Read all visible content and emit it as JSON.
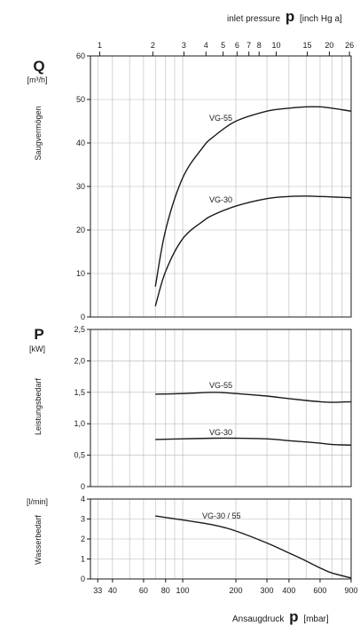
{
  "chart_data": {
    "type": "line",
    "top_axis": {
      "label_prefix": "inlet pressure",
      "symbol": "p",
      "unit": "[inch Hg a]",
      "ticks": [
        "1",
        "2",
        "3",
        "4",
        "5",
        "6",
        "7",
        "8",
        "10",
        "15",
        "20",
        "26"
      ]
    },
    "bottom_axis": {
      "label_prefix": "Ansaugdruck",
      "symbol": "p",
      "unit": "[mbar]",
      "scale": "log",
      "range": [
        30,
        900
      ],
      "ticks": [
        "33",
        "40",
        "60",
        "80",
        "100",
        "200",
        "300",
        "400",
        "600",
        "900"
      ]
    },
    "panels": [
      {
        "id": "Q",
        "symbol": "Q",
        "unit": "[m³/h]",
        "ylabel": "Saugvermögen",
        "ylim": [
          0,
          60
        ],
        "yticks": [
          "0",
          "10",
          "20",
          "30",
          "40",
          "50",
          "60"
        ],
        "series": [
          {
            "name": "VG-55",
            "x": [
              70,
              80,
              100,
              130,
              150,
              200,
              300,
              400,
              500,
              600,
              700,
              900
            ],
            "y": [
              7,
              20,
              32,
              39,
              41.5,
              45,
              47.3,
              48,
              48.3,
              48.3,
              48,
              47.3
            ]
          },
          {
            "name": "VG-30",
            "x": [
              70,
              80,
              100,
              130,
              150,
              200,
              300,
              400,
              500,
              600,
              700,
              900
            ],
            "y": [
              2.5,
              10.5,
              18,
              22,
              23.5,
              25.5,
              27.2,
              27.7,
              27.8,
              27.7,
              27.6,
              27.4
            ]
          }
        ]
      },
      {
        "id": "P",
        "symbol": "P",
        "unit": "[kW]",
        "ylabel": "Leistungsbedarf",
        "ylim": [
          0,
          2.5
        ],
        "yticks": [
          "0",
          "0,5",
          "1,0",
          "1,5",
          "2,0",
          "2,5"
        ],
        "series": [
          {
            "name": "VG-55",
            "x": [
              70,
              100,
              150,
              200,
              300,
              400,
              500,
              600,
              700,
              900
            ],
            "y": [
              1.47,
              1.48,
              1.5,
              1.48,
              1.44,
              1.4,
              1.37,
              1.35,
              1.34,
              1.35
            ]
          },
          {
            "name": "VG-30",
            "x": [
              70,
              100,
              150,
              200,
              300,
              400,
              500,
              600,
              700,
              900
            ],
            "y": [
              0.75,
              0.76,
              0.77,
              0.77,
              0.76,
              0.73,
              0.71,
              0.69,
              0.67,
              0.66
            ]
          }
        ]
      },
      {
        "id": "W",
        "symbol": "",
        "unit": "[l/min]",
        "ylabel": "Wasserbedarf",
        "ylim": [
          0,
          4
        ],
        "yticks": [
          "0",
          "1",
          "2",
          "3",
          "4"
        ],
        "series": [
          {
            "name": "VG-30 / 55",
            "x": [
              70,
              100,
              150,
              200,
              300,
              400,
              500,
              600,
              700,
              900
            ],
            "y": [
              3.15,
              2.95,
              2.7,
              2.4,
              1.8,
              1.3,
              0.9,
              0.55,
              0.3,
              0.05
            ]
          }
        ]
      }
    ],
    "grid": true
  }
}
